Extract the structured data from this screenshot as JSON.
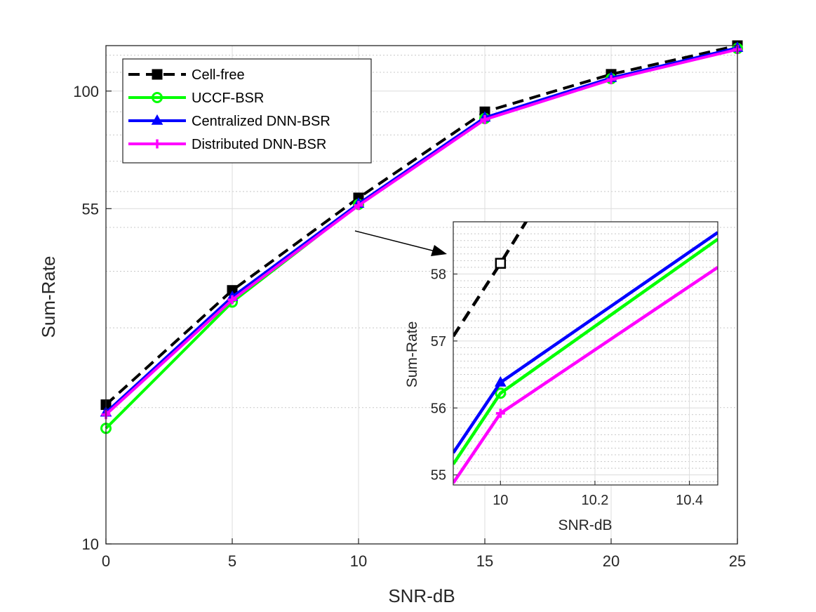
{
  "chart_data": [
    {
      "type": "line",
      "xlabel": "SNR-dB",
      "ylabel": "Sum-Rate",
      "x": [
        0,
        5,
        10,
        15,
        20,
        25
      ],
      "xlim": [
        0,
        25
      ],
      "ylim": [
        10,
        126
      ],
      "yscale": "log",
      "xticks": [
        "0",
        "5",
        "10",
        "15",
        "20",
        "25"
      ],
      "yticks": [
        {
          "value": 10,
          "label": "10"
        },
        {
          "value": 55,
          "label": "55"
        },
        {
          "value": 100,
          "label": "100"
        }
      ],
      "grid": true,
      "legend_location": "top-left",
      "series": [
        {
          "name": "Cell-free",
          "color": "#000000",
          "dash": true,
          "marker": "square",
          "values": [
            20.3,
            36.3,
            58.1,
            90.0,
            108.9,
            126.0
          ]
        },
        {
          "name": "UCCF-BSR",
          "color": "#00ff00",
          "dash": false,
          "marker": "circle",
          "values": [
            18.0,
            34.2,
            56.2,
            87.0,
            106.5,
            124.2
          ]
        },
        {
          "name": "Centralized DNN-BSR",
          "color": "#0000ff",
          "dash": false,
          "marker": "triangle",
          "values": [
            19.5,
            35.1,
            56.4,
            87.4,
            106.9,
            124.6
          ]
        },
        {
          "name": "Distributed DNN-BSR",
          "color": "#ff00ff",
          "dash": false,
          "marker": "plus",
          "values": [
            19.3,
            34.6,
            55.9,
            86.5,
            106.0,
            123.6
          ]
        }
      ]
    },
    {
      "type": "line",
      "xlabel": "SNR-dB",
      "ylabel": "Sum-Rate",
      "xlim": [
        9.9,
        10.46
      ],
      "ylim": [
        54.85,
        58.78
      ],
      "xticks": [
        "10",
        "10.2",
        "10.4"
      ],
      "yticks": [
        "55",
        "56",
        "57",
        "58"
      ],
      "grid": true,
      "series": [
        {
          "name": "Cell-free",
          "color": "#000000",
          "dash": true,
          "marker": "square",
          "points": [
            [
              9.9,
              57.07
            ],
            [
              10.0,
              58.16
            ],
            [
              10.143,
              59.8
            ]
          ]
        },
        {
          "name": "UCCF-BSR",
          "color": "#00ff00",
          "dash": false,
          "marker": "circle",
          "points": [
            [
              9.9,
              55.16
            ],
            [
              10.0,
              56.22
            ],
            [
              10.46,
              58.52
            ]
          ]
        },
        {
          "name": "Centralized DNN-BSR",
          "color": "#0000ff",
          "dash": false,
          "marker": "triangle",
          "points": [
            [
              9.9,
              55.33
            ],
            [
              10.0,
              56.38
            ],
            [
              10.46,
              58.62
            ]
          ]
        },
        {
          "name": "Distributed DNN-BSR",
          "color": "#ff00ff",
          "dash": false,
          "marker": "plus",
          "points": [
            [
              9.9,
              54.88
            ],
            [
              10.0,
              55.92
            ],
            [
              10.46,
              58.1
            ]
          ]
        }
      ]
    }
  ]
}
